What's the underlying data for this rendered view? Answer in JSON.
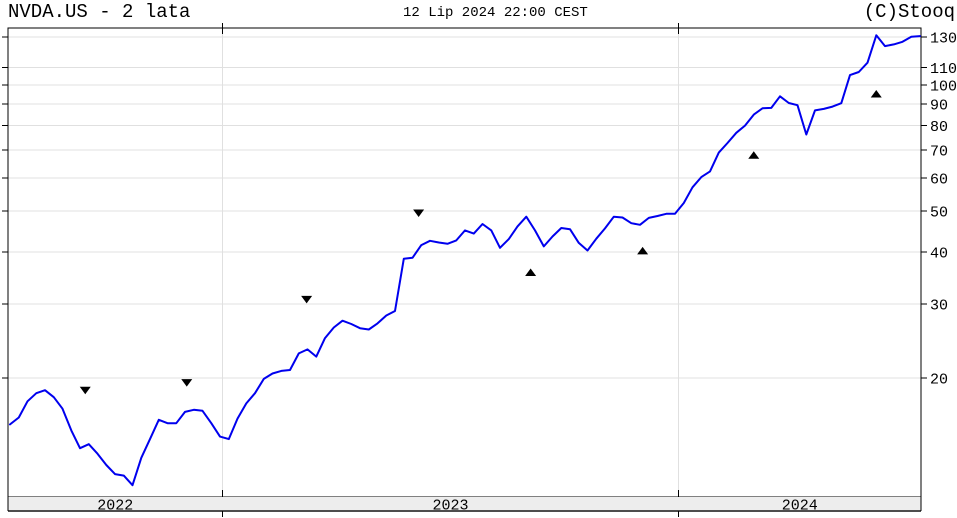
{
  "header": {
    "title": "NVDA.US - 2 lata",
    "timestamp": "12 Lip 2024 22:00 CEST",
    "copyright": "(C)Stooq"
  },
  "chart_data": {
    "type": "line",
    "symbol": "NVDA.US",
    "range_label": "2 lata",
    "period": "Jul 2022 - 12 Lip 2024",
    "interval": "weekly",
    "scale": "log",
    "grid": true,
    "x_axis": {
      "year_labels": [
        "2022",
        "2023",
        "2024"
      ],
      "year_boundary_weeks": [
        24.3,
        76.4
      ],
      "weeks_total": 105
    },
    "y_axis": {
      "side": "right",
      "ticks": [
        130,
        110,
        100,
        90,
        80,
        70,
        60,
        50,
        40,
        30,
        20
      ]
    },
    "series": [
      {
        "name": "NVDA.US close",
        "color": "#0000ee",
        "values": [
          15.5,
          16.1,
          17.6,
          18.4,
          18.7,
          18.0,
          16.9,
          15.0,
          13.6,
          13.9,
          13.2,
          12.4,
          11.8,
          11.7,
          11.1,
          12.9,
          14.3,
          15.9,
          15.6,
          15.6,
          16.6,
          16.8,
          16.7,
          15.6,
          14.5,
          14.3,
          16.0,
          17.4,
          18.4,
          19.9,
          20.5,
          20.8,
          20.9,
          22.9,
          23.4,
          22.5,
          24.9,
          26.4,
          27.4,
          26.9,
          26.3,
          26.1,
          27.0,
          28.2,
          28.9,
          38.5,
          38.7,
          41.5,
          42.5,
          42.1,
          41.8,
          42.6,
          45.0,
          44.2,
          46.6,
          45.0,
          40.9,
          42.9,
          46.0,
          48.5,
          45.0,
          41.2,
          43.5,
          45.6,
          45.3,
          42.0,
          40.3,
          43.0,
          45.5,
          48.5,
          48.3,
          46.8,
          46.4,
          48.2,
          48.7,
          49.3,
          49.3,
          52.3,
          57.0,
          60.3,
          62.2,
          69.0,
          72.7,
          76.9,
          80.0,
          85.0,
          88.0,
          88.2,
          94.0,
          90.6,
          89.5,
          76.2,
          87.0,
          87.7,
          88.8,
          90.5,
          105.6,
          107.4,
          113.0,
          131.4,
          123.8,
          125.0,
          126.8,
          130.3,
          130.8
        ]
      }
    ],
    "markers": {
      "down": [
        {
          "week": 8.6,
          "price": 18.7
        },
        {
          "week": 20.2,
          "price": 19.5
        },
        {
          "week": 33.9,
          "price": 30.8
        },
        {
          "week": 46.7,
          "price": 49.5
        }
      ],
      "up": [
        {
          "week": 59.5,
          "price": 35.7
        },
        {
          "week": 72.3,
          "price": 40.2
        },
        {
          "week": 85.0,
          "price": 68.0
        },
        {
          "week": 99.0,
          "price": 95.2
        }
      ]
    }
  },
  "colors": {
    "line": "#0000ee",
    "grid": "#e0e0e0",
    "frame": "#000000",
    "band_fill": "#ededed",
    "band_bottom": "#4d4d4d",
    "marker": "#000000"
  }
}
